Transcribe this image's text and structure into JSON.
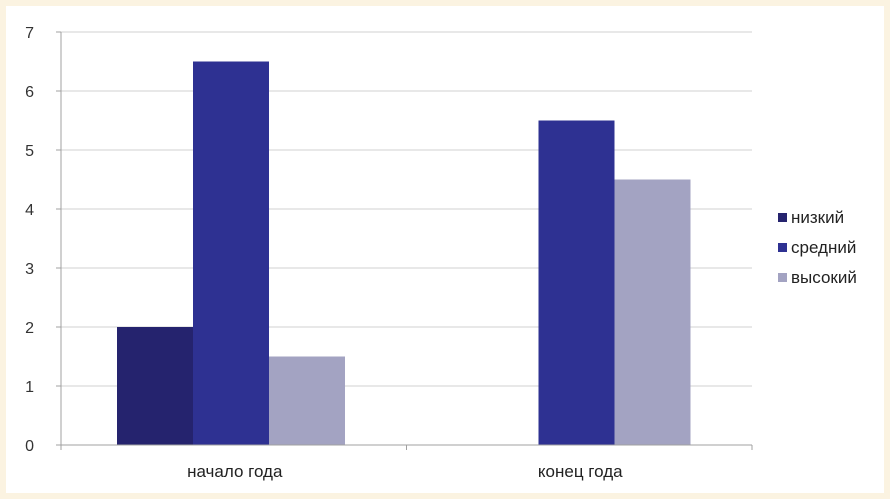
{
  "chart_data": {
    "type": "bar",
    "categories": [
      "начало года",
      "конец года"
    ],
    "series": [
      {
        "name": "низкий",
        "values": [
          2,
          0
        ],
        "color": "#25236e"
      },
      {
        "name": "средний",
        "values": [
          6.5,
          5.5
        ],
        "color": "#2e3192"
      },
      {
        "name": "высокий",
        "values": [
          1.5,
          4.5
        ],
        "color": "#a3a3c2"
      }
    ],
    "yticks": [
      "0",
      "1",
      "2",
      "3",
      "4",
      "5",
      "6",
      "7"
    ],
    "ylim": [
      0,
      7
    ],
    "grid": true,
    "legend_position": "right"
  }
}
